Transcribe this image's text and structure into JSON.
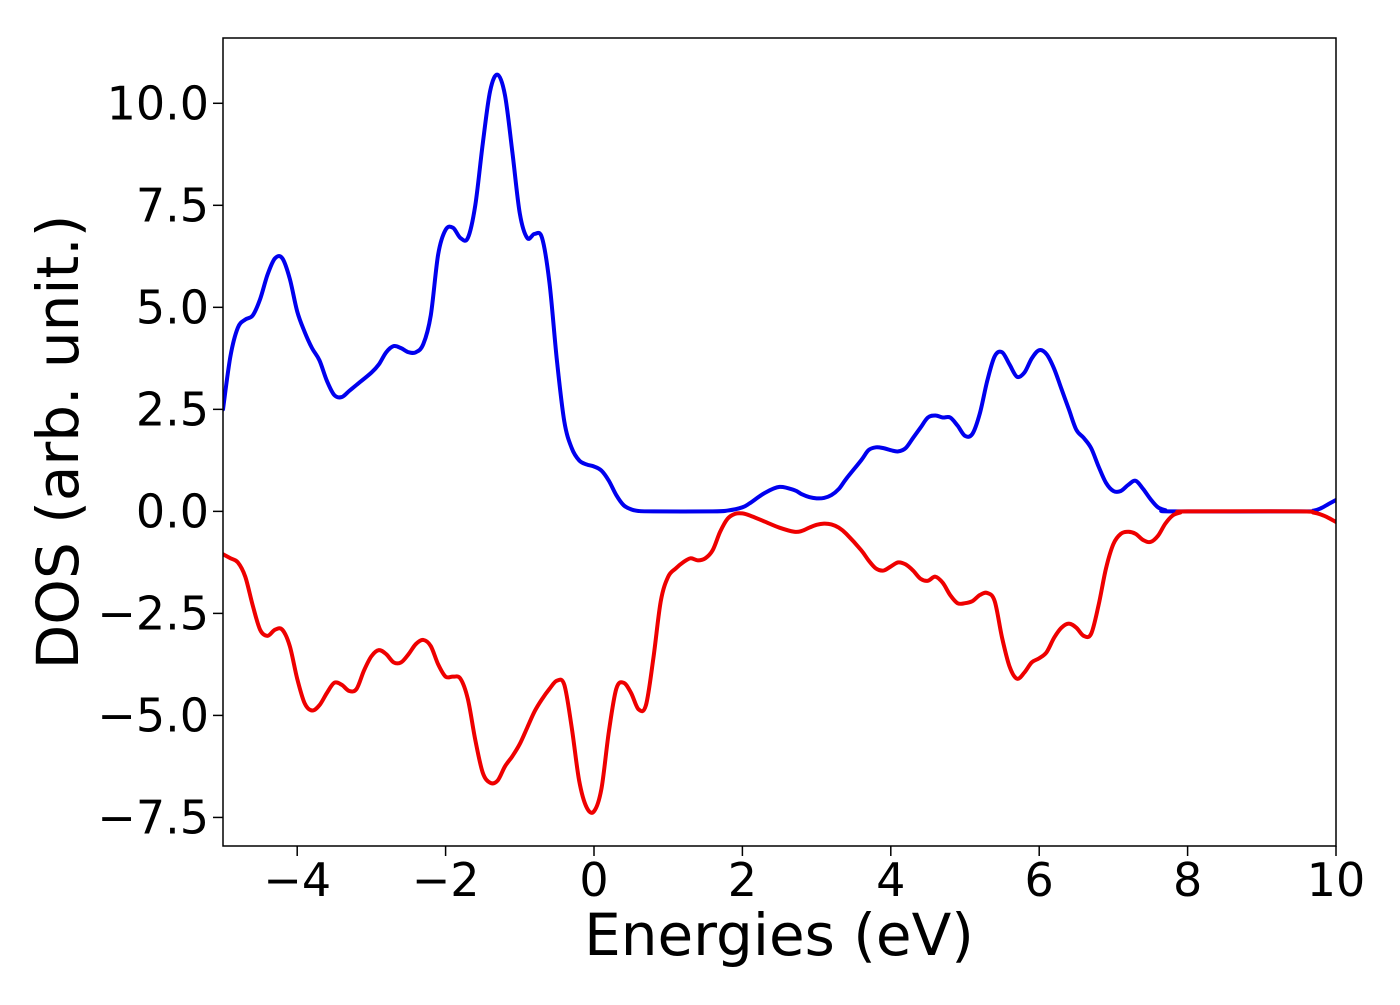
{
  "chart_data": {
    "type": "line",
    "title": "",
    "xlabel": "Energies (eV)",
    "ylabel": "DOS (arb. unit.)",
    "xlim": [
      -5,
      10
    ],
    "ylim": [
      -8.2,
      11.6
    ],
    "grid": false,
    "legend": "none",
    "x_ticks": [
      {
        "value": -4,
        "label": "−4"
      },
      {
        "value": -2,
        "label": "−2"
      },
      {
        "value": 0,
        "label": "0"
      },
      {
        "value": 2,
        "label": "2"
      },
      {
        "value": 4,
        "label": "4"
      },
      {
        "value": 6,
        "label": "6"
      },
      {
        "value": 8,
        "label": "8"
      },
      {
        "value": 10,
        "label": "10"
      }
    ],
    "y_ticks": [
      {
        "value": 10,
        "label": "10.0"
      },
      {
        "value": 7.5,
        "label": "7.5"
      },
      {
        "value": 5,
        "label": "5.0"
      },
      {
        "value": 2.5,
        "label": "2.5"
      },
      {
        "value": 0,
        "label": "0.0"
      },
      {
        "value": -2.5,
        "label": "−2.5"
      },
      {
        "value": -5,
        "label": "−5.0"
      },
      {
        "value": -7.5,
        "label": "−7.5"
      }
    ],
    "series": [
      {
        "color": "#0000ee",
        "points": [
          [
            -5.0,
            2.5
          ],
          [
            -4.9,
            3.8
          ],
          [
            -4.8,
            4.5
          ],
          [
            -4.7,
            4.7
          ],
          [
            -4.6,
            4.8
          ],
          [
            -4.5,
            5.2
          ],
          [
            -4.4,
            5.8
          ],
          [
            -4.3,
            6.2
          ],
          [
            -4.2,
            6.2
          ],
          [
            -4.1,
            5.7
          ],
          [
            -4.0,
            4.9
          ],
          [
            -3.9,
            4.4
          ],
          [
            -3.8,
            4.0
          ],
          [
            -3.7,
            3.7
          ],
          [
            -3.6,
            3.2
          ],
          [
            -3.5,
            2.85
          ],
          [
            -3.4,
            2.8
          ],
          [
            -3.3,
            2.95
          ],
          [
            -3.2,
            3.1
          ],
          [
            -3.0,
            3.4
          ],
          [
            -2.9,
            3.6
          ],
          [
            -2.8,
            3.9
          ],
          [
            -2.7,
            4.05
          ],
          [
            -2.6,
            4.0
          ],
          [
            -2.5,
            3.9
          ],
          [
            -2.4,
            3.9
          ],
          [
            -2.3,
            4.1
          ],
          [
            -2.2,
            4.8
          ],
          [
            -2.1,
            6.3
          ],
          [
            -2.0,
            6.9
          ],
          [
            -1.9,
            6.95
          ],
          [
            -1.8,
            6.7
          ],
          [
            -1.7,
            6.7
          ],
          [
            -1.6,
            7.5
          ],
          [
            -1.5,
            9.0
          ],
          [
            -1.4,
            10.3
          ],
          [
            -1.3,
            10.7
          ],
          [
            -1.2,
            10.2
          ],
          [
            -1.1,
            8.8
          ],
          [
            -1.0,
            7.3
          ],
          [
            -0.9,
            6.7
          ],
          [
            -0.8,
            6.8
          ],
          [
            -0.7,
            6.7
          ],
          [
            -0.6,
            5.6
          ],
          [
            -0.5,
            3.7
          ],
          [
            -0.4,
            2.2
          ],
          [
            -0.3,
            1.55
          ],
          [
            -0.2,
            1.25
          ],
          [
            -0.1,
            1.15
          ],
          [
            0.0,
            1.1
          ],
          [
            0.1,
            1.0
          ],
          [
            0.2,
            0.75
          ],
          [
            0.3,
            0.4
          ],
          [
            0.4,
            0.15
          ],
          [
            0.5,
            0.05
          ],
          [
            0.6,
            0.01
          ],
          [
            0.8,
            0.0
          ],
          [
            1.6,
            0.0
          ],
          [
            1.8,
            0.02
          ],
          [
            2.0,
            0.1
          ],
          [
            2.1,
            0.2
          ],
          [
            2.3,
            0.45
          ],
          [
            2.5,
            0.6
          ],
          [
            2.7,
            0.52
          ],
          [
            2.8,
            0.42
          ],
          [
            2.9,
            0.35
          ],
          [
            3.0,
            0.32
          ],
          [
            3.1,
            0.33
          ],
          [
            3.2,
            0.4
          ],
          [
            3.3,
            0.55
          ],
          [
            3.4,
            0.8
          ],
          [
            3.6,
            1.25
          ],
          [
            3.7,
            1.5
          ],
          [
            3.8,
            1.57
          ],
          [
            3.9,
            1.55
          ],
          [
            4.0,
            1.5
          ],
          [
            4.1,
            1.47
          ],
          [
            4.2,
            1.55
          ],
          [
            4.3,
            1.8
          ],
          [
            4.4,
            2.05
          ],
          [
            4.5,
            2.3
          ],
          [
            4.6,
            2.35
          ],
          [
            4.7,
            2.3
          ],
          [
            4.8,
            2.3
          ],
          [
            4.9,
            2.1
          ],
          [
            5.0,
            1.85
          ],
          [
            5.1,
            1.9
          ],
          [
            5.2,
            2.4
          ],
          [
            5.3,
            3.2
          ],
          [
            5.4,
            3.8
          ],
          [
            5.5,
            3.9
          ],
          [
            5.6,
            3.6
          ],
          [
            5.7,
            3.3
          ],
          [
            5.8,
            3.4
          ],
          [
            5.9,
            3.75
          ],
          [
            6.0,
            3.95
          ],
          [
            6.1,
            3.85
          ],
          [
            6.2,
            3.5
          ],
          [
            6.3,
            3.0
          ],
          [
            6.4,
            2.5
          ],
          [
            6.5,
            2.0
          ],
          [
            6.6,
            1.8
          ],
          [
            6.7,
            1.55
          ],
          [
            6.8,
            1.1
          ],
          [
            6.9,
            0.7
          ],
          [
            7.0,
            0.5
          ],
          [
            7.1,
            0.5
          ],
          [
            7.2,
            0.65
          ],
          [
            7.3,
            0.75
          ],
          [
            7.4,
            0.55
          ],
          [
            7.5,
            0.3
          ],
          [
            7.6,
            0.1
          ],
          [
            7.7,
            0.03
          ],
          [
            7.8,
            0.0
          ],
          [
            9.5,
            0.0
          ],
          [
            9.7,
            0.02
          ],
          [
            9.8,
            0.08
          ],
          [
            9.9,
            0.18
          ],
          [
            10.0,
            0.28
          ]
        ]
      },
      {
        "color": "#ee0000",
        "points": [
          [
            -5.0,
            -1.05
          ],
          [
            -4.9,
            -1.15
          ],
          [
            -4.8,
            -1.25
          ],
          [
            -4.7,
            -1.6
          ],
          [
            -4.6,
            -2.3
          ],
          [
            -4.5,
            -2.9
          ],
          [
            -4.4,
            -3.05
          ],
          [
            -4.3,
            -2.9
          ],
          [
            -4.2,
            -2.9
          ],
          [
            -4.1,
            -3.3
          ],
          [
            -4.0,
            -4.1
          ],
          [
            -3.9,
            -4.7
          ],
          [
            -3.8,
            -4.88
          ],
          [
            -3.7,
            -4.75
          ],
          [
            -3.6,
            -4.45
          ],
          [
            -3.5,
            -4.2
          ],
          [
            -3.4,
            -4.25
          ],
          [
            -3.3,
            -4.4
          ],
          [
            -3.2,
            -4.35
          ],
          [
            -3.1,
            -3.9
          ],
          [
            -3.0,
            -3.55
          ],
          [
            -2.9,
            -3.4
          ],
          [
            -2.8,
            -3.5
          ],
          [
            -2.7,
            -3.7
          ],
          [
            -2.6,
            -3.7
          ],
          [
            -2.5,
            -3.5
          ],
          [
            -2.4,
            -3.25
          ],
          [
            -2.3,
            -3.15
          ],
          [
            -2.2,
            -3.3
          ],
          [
            -2.1,
            -3.75
          ],
          [
            -2.0,
            -4.05
          ],
          [
            -1.9,
            -4.05
          ],
          [
            -1.8,
            -4.1
          ],
          [
            -1.7,
            -4.6
          ],
          [
            -1.6,
            -5.6
          ],
          [
            -1.5,
            -6.4
          ],
          [
            -1.4,
            -6.65
          ],
          [
            -1.3,
            -6.6
          ],
          [
            -1.2,
            -6.25
          ],
          [
            -1.1,
            -6.0
          ],
          [
            -1.0,
            -5.7
          ],
          [
            -0.9,
            -5.3
          ],
          [
            -0.8,
            -4.9
          ],
          [
            -0.7,
            -4.6
          ],
          [
            -0.6,
            -4.35
          ],
          [
            -0.5,
            -4.15
          ],
          [
            -0.4,
            -4.25
          ],
          [
            -0.3,
            -5.3
          ],
          [
            -0.2,
            -6.6
          ],
          [
            -0.1,
            -7.25
          ],
          [
            0.0,
            -7.35
          ],
          [
            0.1,
            -6.8
          ],
          [
            0.2,
            -5.4
          ],
          [
            0.3,
            -4.35
          ],
          [
            0.4,
            -4.2
          ],
          [
            0.5,
            -4.45
          ],
          [
            0.6,
            -4.85
          ],
          [
            0.7,
            -4.75
          ],
          [
            0.8,
            -3.6
          ],
          [
            0.9,
            -2.2
          ],
          [
            1.0,
            -1.6
          ],
          [
            1.1,
            -1.4
          ],
          [
            1.2,
            -1.25
          ],
          [
            1.3,
            -1.15
          ],
          [
            1.4,
            -1.2
          ],
          [
            1.5,
            -1.15
          ],
          [
            1.6,
            -0.95
          ],
          [
            1.7,
            -0.5
          ],
          [
            1.8,
            -0.18
          ],
          [
            1.9,
            -0.06
          ],
          [
            2.0,
            -0.05
          ],
          [
            2.1,
            -0.1
          ],
          [
            2.3,
            -0.25
          ],
          [
            2.5,
            -0.4
          ],
          [
            2.7,
            -0.5
          ],
          [
            2.8,
            -0.48
          ],
          [
            2.9,
            -0.4
          ],
          [
            3.0,
            -0.33
          ],
          [
            3.1,
            -0.3
          ],
          [
            3.2,
            -0.32
          ],
          [
            3.3,
            -0.4
          ],
          [
            3.4,
            -0.55
          ],
          [
            3.6,
            -0.95
          ],
          [
            3.7,
            -1.2
          ],
          [
            3.8,
            -1.4
          ],
          [
            3.9,
            -1.45
          ],
          [
            4.0,
            -1.35
          ],
          [
            4.1,
            -1.25
          ],
          [
            4.2,
            -1.3
          ],
          [
            4.3,
            -1.45
          ],
          [
            4.4,
            -1.65
          ],
          [
            4.5,
            -1.7
          ],
          [
            4.6,
            -1.6
          ],
          [
            4.7,
            -1.75
          ],
          [
            4.8,
            -2.05
          ],
          [
            4.9,
            -2.25
          ],
          [
            5.0,
            -2.25
          ],
          [
            5.1,
            -2.2
          ],
          [
            5.2,
            -2.05
          ],
          [
            5.3,
            -2.0
          ],
          [
            5.4,
            -2.2
          ],
          [
            5.5,
            -3.1
          ],
          [
            5.6,
            -3.8
          ],
          [
            5.7,
            -4.1
          ],
          [
            5.8,
            -3.95
          ],
          [
            5.9,
            -3.7
          ],
          [
            6.0,
            -3.6
          ],
          [
            6.1,
            -3.45
          ],
          [
            6.2,
            -3.1
          ],
          [
            6.3,
            -2.85
          ],
          [
            6.4,
            -2.75
          ],
          [
            6.5,
            -2.85
          ],
          [
            6.6,
            -3.05
          ],
          [
            6.7,
            -3.0
          ],
          [
            6.8,
            -2.3
          ],
          [
            6.9,
            -1.4
          ],
          [
            7.0,
            -0.8
          ],
          [
            7.1,
            -0.55
          ],
          [
            7.2,
            -0.5
          ],
          [
            7.3,
            -0.55
          ],
          [
            7.4,
            -0.7
          ],
          [
            7.5,
            -0.75
          ],
          [
            7.6,
            -0.6
          ],
          [
            7.7,
            -0.3
          ],
          [
            7.8,
            -0.1
          ],
          [
            7.9,
            -0.03
          ],
          [
            8.0,
            0.0
          ],
          [
            9.5,
            0.0
          ],
          [
            9.7,
            -0.03
          ],
          [
            9.8,
            -0.08
          ],
          [
            9.9,
            -0.16
          ],
          [
            10.0,
            -0.26
          ]
        ]
      }
    ]
  }
}
